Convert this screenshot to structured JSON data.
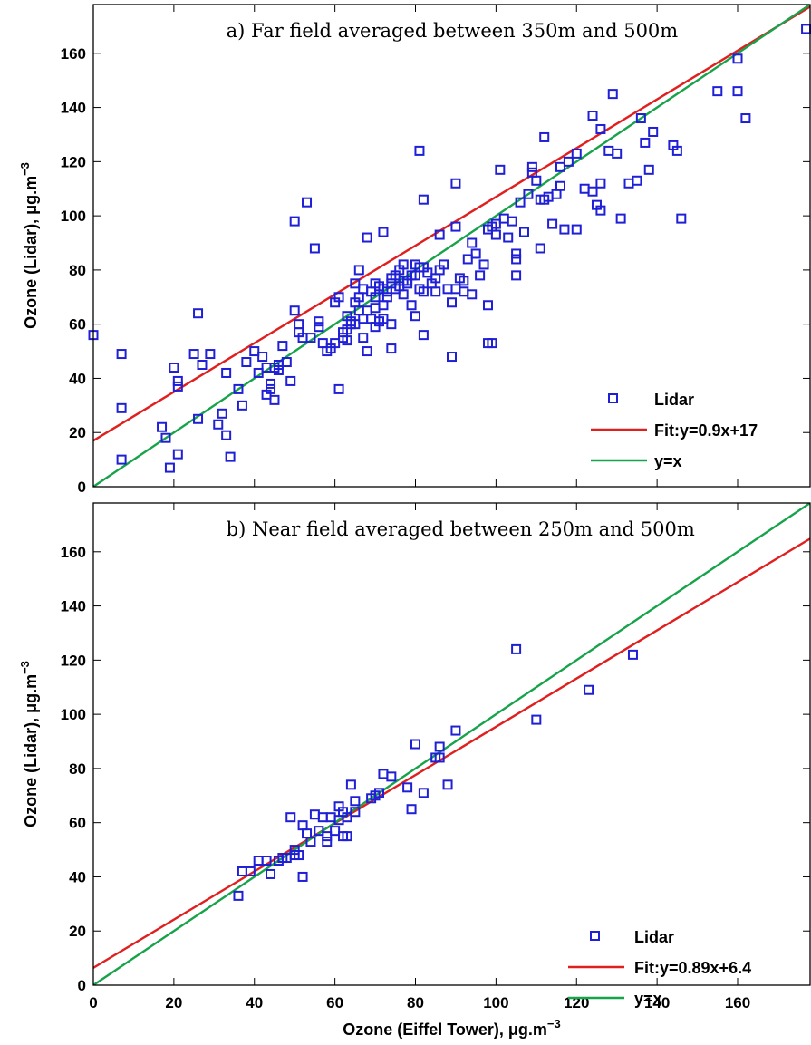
{
  "chart_data": [
    {
      "type": "scatter",
      "title": "a) Far field averaged between 350m and 500m",
      "xlabel": "",
      "ylabel": "Ozone (Lidar), μg.m",
      "ylabel_sup": "−3",
      "xlim": [
        0,
        178
      ],
      "ylim": [
        0,
        178
      ],
      "xticks": [],
      "yticks": [
        0,
        20,
        40,
        60,
        80,
        100,
        120,
        140,
        160
      ],
      "grid": false,
      "legend_position": "bottom-right",
      "colors": {
        "points": "#1f1fd6",
        "fit": "#e01f1f",
        "identity": "#16a34a"
      },
      "series": [
        {
          "name": "Lidar",
          "kind": "points",
          "points": [
            [
              0,
              56
            ],
            [
              7,
              49
            ],
            [
              7,
              29
            ],
            [
              7,
              10
            ],
            [
              17,
              22
            ],
            [
              18,
              18
            ],
            [
              19,
              7
            ],
            [
              20,
              44
            ],
            [
              21,
              12
            ],
            [
              21,
              39
            ],
            [
              21,
              37
            ],
            [
              25,
              49
            ],
            [
              26,
              64
            ],
            [
              26,
              25
            ],
            [
              27,
              45
            ],
            [
              29,
              49
            ],
            [
              31,
              23
            ],
            [
              32,
              27
            ],
            [
              33,
              19
            ],
            [
              33,
              42
            ],
            [
              34,
              11
            ],
            [
              36,
              36
            ],
            [
              37,
              30
            ],
            [
              38,
              46
            ],
            [
              40,
              50
            ],
            [
              41,
              42
            ],
            [
              42,
              48
            ],
            [
              43,
              34
            ],
            [
              43,
              44
            ],
            [
              44,
              36
            ],
            [
              44,
              38
            ],
            [
              45,
              32
            ],
            [
              45,
              44
            ],
            [
              46,
              43
            ],
            [
              46,
              45
            ],
            [
              47,
              52
            ],
            [
              48,
              46
            ],
            [
              49,
              39
            ],
            [
              50,
              98
            ],
            [
              50,
              65
            ],
            [
              51,
              60
            ],
            [
              51,
              57
            ],
            [
              52,
              55
            ],
            [
              53,
              105
            ],
            [
              54,
              55
            ],
            [
              55,
              88
            ],
            [
              56,
              61
            ],
            [
              56,
              59
            ],
            [
              57,
              53
            ],
            [
              58,
              50
            ],
            [
              59,
              51
            ],
            [
              60,
              68
            ],
            [
              60,
              53
            ],
            [
              61,
              70
            ],
            [
              61,
              36
            ],
            [
              62,
              57
            ],
            [
              62,
              55
            ],
            [
              63,
              54
            ],
            [
              63,
              58
            ],
            [
              63,
              63
            ],
            [
              64,
              60
            ],
            [
              64,
              61
            ],
            [
              65,
              68
            ],
            [
              65,
              60
            ],
            [
              65,
              75
            ],
            [
              66,
              65
            ],
            [
              66,
              70
            ],
            [
              66,
              80
            ],
            [
              67,
              55
            ],
            [
              67,
              62
            ],
            [
              67,
              73
            ],
            [
              68,
              92
            ],
            [
              68,
              50
            ],
            [
              68,
              65
            ],
            [
              69,
              62
            ],
            [
              69,
              72
            ],
            [
              70,
              70
            ],
            [
              70,
              59
            ],
            [
              70,
              66
            ],
            [
              70,
              75
            ],
            [
              71,
              61
            ],
            [
              71,
              74
            ],
            [
              72,
              67
            ],
            [
              72,
              62
            ],
            [
              72,
              94
            ],
            [
              72,
              73
            ],
            [
              73,
              72
            ],
            [
              73,
              70
            ],
            [
              74,
              60
            ],
            [
              74,
              75
            ],
            [
              74,
              51
            ],
            [
              74,
              77
            ],
            [
              75,
              73
            ],
            [
              75,
              78
            ],
            [
              76,
              80
            ],
            [
              76,
              74
            ],
            [
              77,
              76
            ],
            [
              77,
              82
            ],
            [
              77,
              71
            ],
            [
              78,
              76
            ],
            [
              78,
              75
            ],
            [
              79,
              78
            ],
            [
              79,
              67
            ],
            [
              80,
              63
            ],
            [
              80,
              82
            ],
            [
              80,
              78
            ],
            [
              81,
              73
            ],
            [
              81,
              124
            ],
            [
              81,
              81
            ],
            [
              82,
              56
            ],
            [
              82,
              72
            ],
            [
              82,
              81
            ],
            [
              82,
              106
            ],
            [
              83,
              79
            ],
            [
              84,
              75
            ],
            [
              85,
              77
            ],
            [
              85,
              72
            ],
            [
              86,
              80
            ],
            [
              86,
              93
            ],
            [
              87,
              82
            ],
            [
              88,
              73
            ],
            [
              89,
              68
            ],
            [
              89,
              48
            ],
            [
              90,
              73
            ],
            [
              90,
              112
            ],
            [
              90,
              96
            ],
            [
              91,
              77
            ],
            [
              92,
              76
            ],
            [
              92,
              72
            ],
            [
              93,
              84
            ],
            [
              94,
              90
            ],
            [
              94,
              71
            ],
            [
              95,
              86
            ],
            [
              96,
              78
            ],
            [
              97,
              82
            ],
            [
              98,
              95
            ],
            [
              98,
              67
            ],
            [
              98,
              53
            ],
            [
              99,
              96
            ],
            [
              99,
              53
            ],
            [
              100,
              97
            ],
            [
              100,
              93
            ],
            [
              101,
              117
            ],
            [
              102,
              99
            ],
            [
              103,
              92
            ],
            [
              104,
              98
            ],
            [
              105,
              86
            ],
            [
              105,
              84
            ],
            [
              105,
              78
            ],
            [
              106,
              105
            ],
            [
              107,
              94
            ],
            [
              108,
              108
            ],
            [
              109,
              118
            ],
            [
              109,
              116
            ],
            [
              110,
              113
            ],
            [
              111,
              106
            ],
            [
              111,
              88
            ],
            [
              112,
              129
            ],
            [
              112,
              106
            ],
            [
              113,
              107
            ],
            [
              114,
              97
            ],
            [
              115,
              108
            ],
            [
              116,
              118
            ],
            [
              116,
              111
            ],
            [
              117,
              95
            ],
            [
              118,
              120
            ],
            [
              120,
              95
            ],
            [
              120,
              123
            ],
            [
              122,
              110
            ],
            [
              124,
              137
            ],
            [
              124,
              109
            ],
            [
              125,
              104
            ],
            [
              126,
              132
            ],
            [
              126,
              112
            ],
            [
              126,
              102
            ],
            [
              128,
              124
            ],
            [
              129,
              145
            ],
            [
              130,
              123
            ],
            [
              131,
              99
            ],
            [
              133,
              112
            ],
            [
              135,
              113
            ],
            [
              136,
              136
            ],
            [
              137,
              127
            ],
            [
              138,
              117
            ],
            [
              139,
              131
            ],
            [
              144,
              126
            ],
            [
              145,
              124
            ],
            [
              146,
              99
            ],
            [
              155,
              146
            ],
            [
              160,
              158
            ],
            [
              160,
              146
            ],
            [
              162,
              136
            ],
            [
              177,
              169
            ]
          ]
        },
        {
          "name": "Fit:y=0.9x+17",
          "kind": "line",
          "slope": 0.9,
          "intercept": 17
        },
        {
          "name": "y=x",
          "kind": "line",
          "slope": 1,
          "intercept": 0
        }
      ]
    },
    {
      "type": "scatter",
      "title": "b) Near field averaged between 250m and 500m",
      "xlabel": "Ozone (Eiffel Tower), μg.m",
      "xlabel_sup": "−3",
      "ylabel": "Ozone (Lidar), μg.m",
      "ylabel_sup": "−3",
      "xlim": [
        0,
        178
      ],
      "ylim": [
        0,
        178
      ],
      "xticks": [
        0,
        20,
        40,
        60,
        80,
        100,
        120,
        140,
        160
      ],
      "yticks": [
        0,
        20,
        40,
        60,
        80,
        100,
        120,
        140,
        160
      ],
      "grid": false,
      "legend_position": "bottom-right",
      "colors": {
        "points": "#1f1fd6",
        "fit": "#e01f1f",
        "identity": "#16a34a"
      },
      "series": [
        {
          "name": "Lidar",
          "kind": "points",
          "points": [
            [
              36,
              33
            ],
            [
              37,
              42
            ],
            [
              39,
              42
            ],
            [
              41,
              46
            ],
            [
              43,
              46
            ],
            [
              44,
              41
            ],
            [
              46,
              46
            ],
            [
              47,
              47
            ],
            [
              48,
              47
            ],
            [
              49,
              62
            ],
            [
              50,
              50
            ],
            [
              50,
              48
            ],
            [
              51,
              48
            ],
            [
              52,
              59
            ],
            [
              52,
              40
            ],
            [
              53,
              56
            ],
            [
              54,
              53
            ],
            [
              55,
              63
            ],
            [
              56,
              57
            ],
            [
              57,
              62
            ],
            [
              58,
              53
            ],
            [
              58,
              55
            ],
            [
              59,
              62
            ],
            [
              60,
              57
            ],
            [
              61,
              61
            ],
            [
              61,
              66
            ],
            [
              62,
              55
            ],
            [
              62,
              64
            ],
            [
              63,
              55
            ],
            [
              63,
              62
            ],
            [
              64,
              74
            ],
            [
              65,
              68
            ],
            [
              65,
              64
            ],
            [
              69,
              69
            ],
            [
              70,
              70
            ],
            [
              71,
              71
            ],
            [
              72,
              78
            ],
            [
              74,
              77
            ],
            [
              78,
              73
            ],
            [
              79,
              65
            ],
            [
              80,
              89
            ],
            [
              82,
              71
            ],
            [
              85,
              84
            ],
            [
              86,
              88
            ],
            [
              86,
              84
            ],
            [
              88,
              74
            ],
            [
              90,
              94
            ],
            [
              105,
              124
            ],
            [
              110,
              98
            ],
            [
              123,
              109
            ],
            [
              134,
              122
            ]
          ]
        },
        {
          "name": "Fit:y=0.89x+6.4",
          "kind": "line",
          "slope": 0.89,
          "intercept": 6.4
        },
        {
          "name": "y=x",
          "kind": "line",
          "slope": 1,
          "intercept": 0
        }
      ]
    }
  ]
}
